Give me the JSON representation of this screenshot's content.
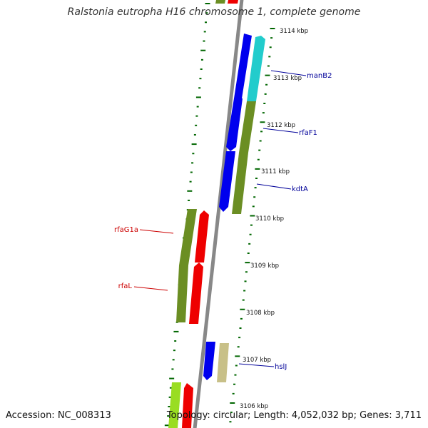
{
  "header": {
    "title": "Ralstonia eutropha H16 chromosome 1, complete genome"
  },
  "footer": {
    "accession": "Accession: NC_008313",
    "summary": "Topology: circular; Length: 4,052,032 bp; Genes: 3,711"
  },
  "colors": {
    "backbone": "#888888",
    "tick": "#006600",
    "blue": "#0000ee",
    "cyan": "#22cccc",
    "olive": "#6b8e23",
    "red": "#ee0000",
    "khaki": "#c8c088",
    "lime": "#99dd22",
    "label_blue": "#000099",
    "label_red": "#cc0000"
  },
  "scale_labels": [
    "3114 kbp",
    "3113 kbp",
    "3112 kbp",
    "3111 kbp",
    "3110 kbp",
    "3109 kbp",
    "3108 kbp",
    "3107 kbp",
    "3106 kbp"
  ],
  "gene_labels": [
    {
      "text": "manB2",
      "color": "label_blue"
    },
    {
      "text": "rfaF1",
      "color": "label_blue"
    },
    {
      "text": "kdtA",
      "color": "label_blue"
    },
    {
      "text": "rfaG1a",
      "color": "label_red"
    },
    {
      "text": "rfaL",
      "color": "label_red"
    },
    {
      "text": "hslJ",
      "color": "label_blue"
    }
  ]
}
